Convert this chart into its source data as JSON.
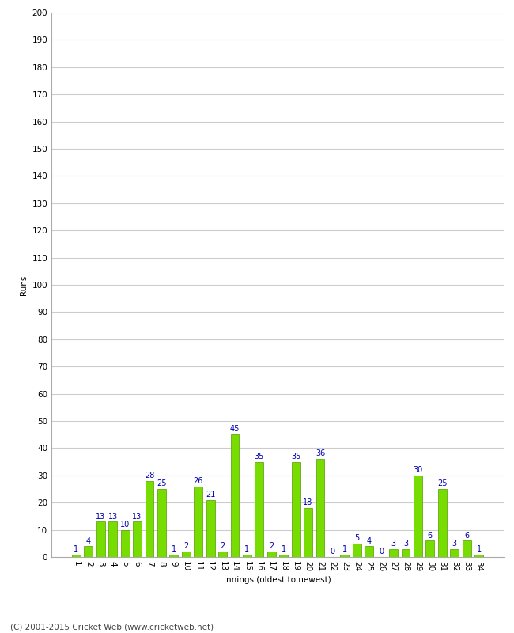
{
  "innings": [
    1,
    2,
    3,
    4,
    5,
    6,
    7,
    8,
    9,
    10,
    11,
    12,
    13,
    14,
    15,
    16,
    17,
    18,
    19,
    20,
    21,
    22,
    23,
    24,
    25,
    26,
    27,
    28,
    29,
    30,
    31,
    32,
    33,
    34
  ],
  "values": [
    1,
    4,
    13,
    13,
    10,
    13,
    28,
    25,
    1,
    2,
    26,
    21,
    2,
    45,
    1,
    35,
    2,
    1,
    35,
    18,
    36,
    0,
    1,
    5,
    4,
    0,
    3,
    3,
    30,
    6,
    25,
    3,
    6,
    1
  ],
  "bar_color": "#77dd00",
  "bar_edge_color": "#559900",
  "label_color": "#0000aa",
  "ylabel": "Runs",
  "xlabel": "Innings (oldest to newest)",
  "ylim_min": 0,
  "ylim_max": 200,
  "ytick_step": 10,
  "background_color": "#ffffff",
  "grid_color": "#cccccc",
  "footer": "(C) 2001-2015 Cricket Web (www.cricketweb.net)",
  "label_fontsize": 7,
  "axis_fontsize": 7.5,
  "footer_fontsize": 7.5
}
